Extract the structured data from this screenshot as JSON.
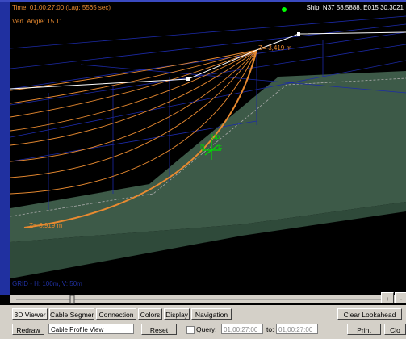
{
  "viewer": {
    "time": "Time: 01,00:27:00 (Lag: 5565 sec)",
    "vert_angle": "Vert. Angle: 15.11",
    "ship": "Ship: N37 58.5888, E015 30.3021",
    "depth_top": "Z=-3,419 m",
    "depth_bottom": "Z=-3,919 m",
    "axis_up": "Up",
    "axis_n": "N",
    "axis_e": "E",
    "grid": "GRID - H: 100m, V: 50m",
    "zoom_in": "+",
    "zoom_out": "-"
  },
  "tabs": [
    "3D Viewer",
    "Cable Segments",
    "Connection",
    "Colors",
    "Display",
    "Navigation"
  ],
  "buttons": {
    "clear_lookahead": "Clear Lookahead",
    "redraw": "Redraw",
    "view_select": "Cable Profile View",
    "reset": "Reset",
    "query": "Query:",
    "query_from": "01,00:27:00",
    "to": "to:",
    "query_to": "01,00:27:00",
    "print": "Print",
    "close": "Clo"
  }
}
